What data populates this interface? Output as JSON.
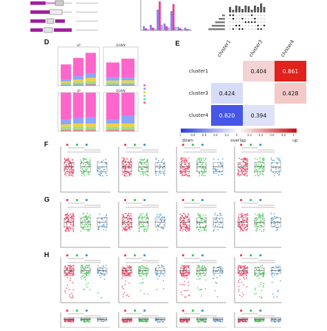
{
  "panels": {
    "D": "D",
    "E": "E",
    "F": "F",
    "G": "G",
    "H": "H"
  },
  "panel_d": {
    "subplot_titles": [
      "UP",
      "DOWN",
      "UP",
      "DOWN"
    ],
    "colors": [
      "#ff66cc",
      "#8aa6ff",
      "#f4d03f",
      "#9de07a",
      "#66d9d9",
      "#f07070"
    ]
  },
  "panel_e": {
    "row_labels": [
      "cluster1",
      "cluster3",
      "cluster4"
    ],
    "col_labels": [
      "cluster1",
      "cluster3",
      "cluster4"
    ],
    "cells": [
      {
        "row": 0,
        "col": 1,
        "value": "0.404",
        "color": "#f6d3d3"
      },
      {
        "row": 0,
        "col": 2,
        "value": "0.861",
        "color": "#e0211c"
      },
      {
        "row": 1,
        "col": 0,
        "value": "0.424",
        "color": "#d6dcf6"
      },
      {
        "row": 1,
        "col": 2,
        "value": "0.428",
        "color": "#f4c9c9"
      },
      {
        "row": 2,
        "col": 0,
        "value": "0.820",
        "color": "#4656e6"
      },
      {
        "row": 2,
        "col": 1,
        "value": "0.394",
        "color": "#dde2f8"
      }
    ],
    "colorbar_ticks": [
      "1",
      "0.8",
      "0.6",
      "0.4",
      "0.2",
      "0",
      "0.2",
      "0.4",
      "0.6",
      "0.8",
      "1"
    ],
    "colorbar_labels": {
      "left": "down",
      "center": "overlap",
      "right": "up"
    },
    "colors": {
      "low": "#2a3fd9",
      "mid": "#ffffff",
      "high": "#cc0a10"
    }
  },
  "legend": {
    "groups": [
      "C1",
      "C2",
      "C3"
    ],
    "colors": [
      "#ee4466",
      "#44cc55",
      "#4499dd"
    ]
  },
  "panel_c": {
    "bar_colors": [
      "#8888ee",
      "#ee4499",
      "#aaaaff"
    ]
  }
}
